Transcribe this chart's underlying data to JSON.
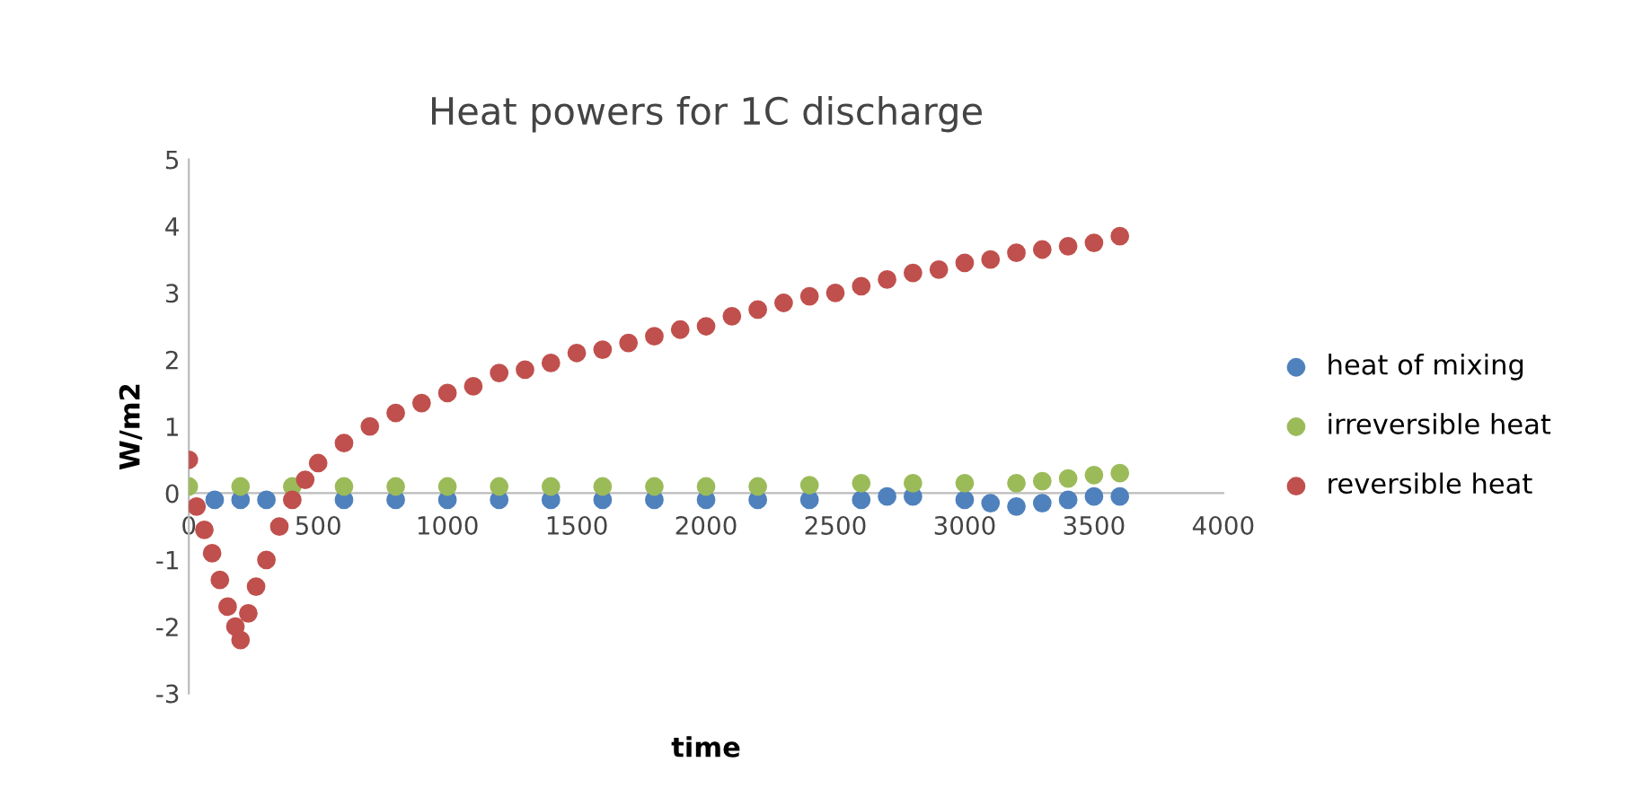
{
  "chart_data": {
    "type": "scatter",
    "title": "Heat powers for 1C discharge",
    "xlabel": "time",
    "ylabel": "W/m2",
    "xlim": [
      0,
      4000
    ],
    "xticks": [
      0,
      500,
      1000,
      1500,
      2000,
      2500,
      3000,
      3500,
      4000
    ],
    "ylim": [
      -3,
      5
    ],
    "yticks": [
      -3,
      -2,
      -1,
      0,
      1,
      2,
      3,
      4,
      5
    ],
    "grid": false,
    "legend": "right",
    "marker": "circle",
    "series": [
      {
        "name": "heat of mixing",
        "color": "#4f81bd",
        "x": [
          100,
          200,
          300,
          600,
          800,
          1000,
          1200,
          1400,
          1600,
          1800,
          2000,
          2200,
          2400,
          2600,
          2700,
          2800,
          3000,
          3100,
          3200,
          3300,
          3400,
          3500,
          3600
        ],
        "values": [
          -0.1,
          -0.1,
          -0.1,
          -0.1,
          -0.1,
          -0.1,
          -0.1,
          -0.1,
          -0.1,
          -0.1,
          -0.1,
          -0.1,
          -0.1,
          -0.1,
          -0.05,
          -0.05,
          -0.1,
          -0.15,
          -0.2,
          -0.15,
          -0.1,
          -0.05,
          -0.05
        ]
      },
      {
        "name": "irreversible heat",
        "color": "#9bbb59",
        "x": [
          0,
          200,
          400,
          600,
          800,
          1000,
          1200,
          1400,
          1600,
          1800,
          2000,
          2200,
          2400,
          2600,
          2800,
          3000,
          3200,
          3300,
          3400,
          3500,
          3600
        ],
        "values": [
          0.1,
          0.1,
          0.1,
          0.1,
          0.1,
          0.1,
          0.1,
          0.1,
          0.1,
          0.1,
          0.1,
          0.1,
          0.12,
          0.15,
          0.15,
          0.15,
          0.15,
          0.18,
          0.22,
          0.27,
          0.3
        ]
      },
      {
        "name": "reversible heat",
        "color": "#c0504d",
        "x": [
          0,
          30,
          60,
          90,
          120,
          150,
          180,
          200,
          230,
          260,
          300,
          350,
          400,
          450,
          500,
          600,
          700,
          800,
          900,
          1000,
          1100,
          1200,
          1300,
          1400,
          1500,
          1600,
          1700,
          1800,
          1900,
          2000,
          2100,
          2200,
          2300,
          2400,
          2500,
          2600,
          2700,
          2800,
          2900,
          3000,
          3100,
          3200,
          3300,
          3400,
          3500,
          3600
        ],
        "values": [
          0.5,
          -0.2,
          -0.55,
          -0.9,
          -1.3,
          -1.7,
          -2.0,
          -2.2,
          -1.8,
          -1.4,
          -1.0,
          -0.5,
          -0.1,
          0.2,
          0.45,
          0.75,
          1.0,
          1.2,
          1.35,
          1.5,
          1.6,
          1.8,
          1.85,
          1.95,
          2.1,
          2.15,
          2.25,
          2.35,
          2.45,
          2.5,
          2.65,
          2.75,
          2.85,
          2.95,
          3.0,
          3.1,
          3.2,
          3.3,
          3.35,
          3.45,
          3.5,
          3.6,
          3.65,
          3.7,
          3.75,
          3.85
        ]
      }
    ]
  }
}
